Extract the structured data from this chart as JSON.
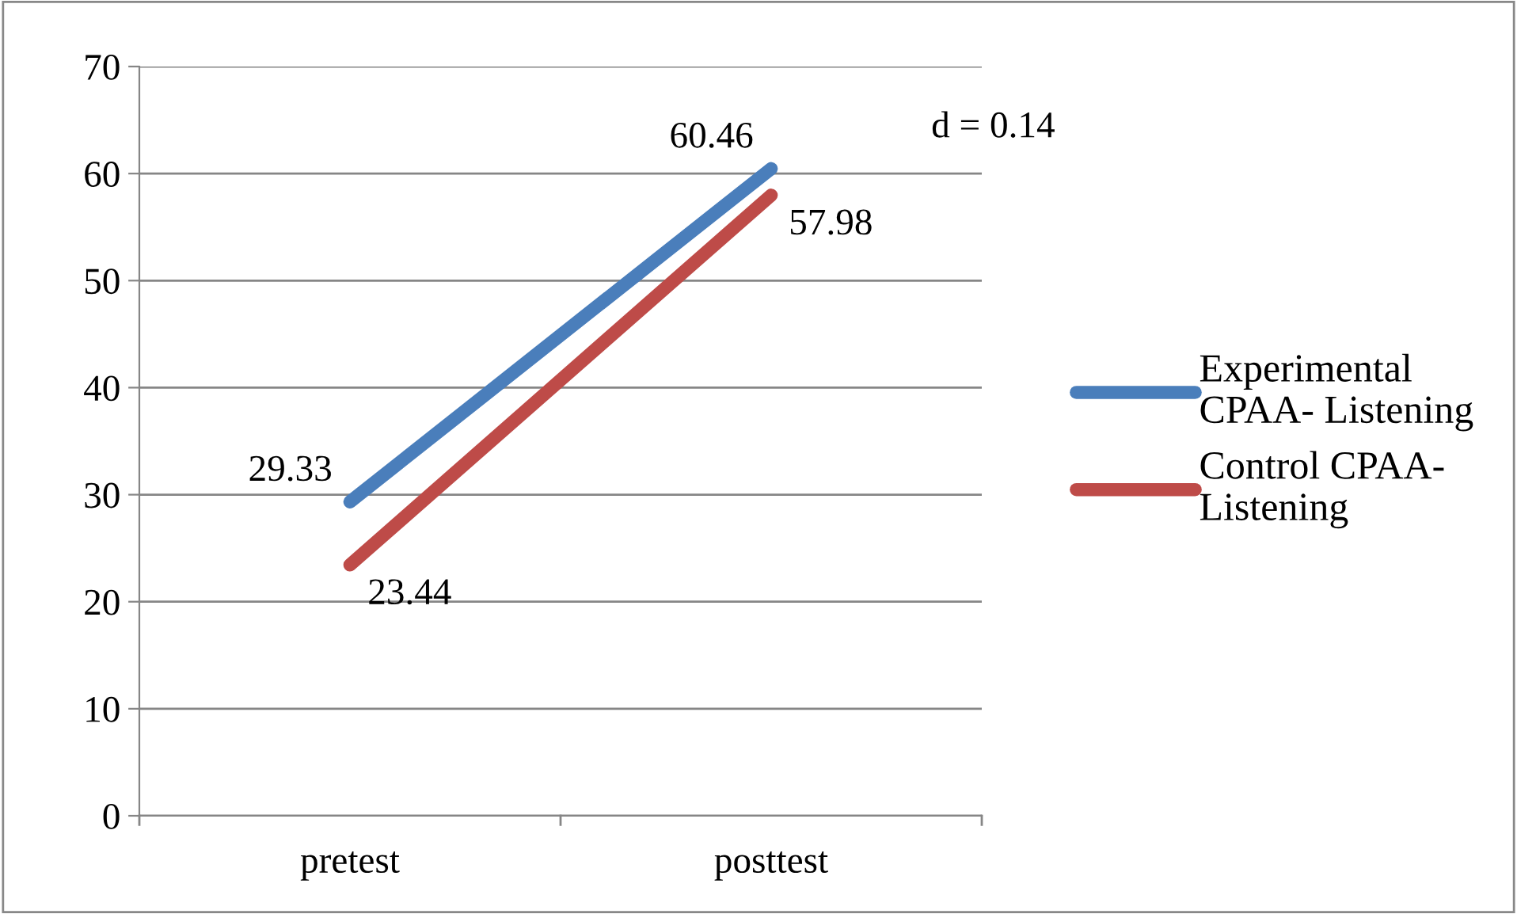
{
  "chart_data": {
    "type": "line",
    "categories": [
      "pretest",
      "posttest"
    ],
    "series": [
      {
        "name": "Experimental CPAA- Listening",
        "color": "#4a7ebb",
        "values": [
          29.33,
          60.46
        ]
      },
      {
        "name": "Control CPAA- Listening",
        "color": "#be4b48",
        "values": [
          23.44,
          57.98
        ]
      }
    ],
    "ylim": [
      0,
      70
    ],
    "yticks": [
      0,
      10,
      20,
      30,
      40,
      50,
      60,
      70
    ],
    "grid": "y",
    "legend": "right",
    "marker": "none",
    "line_style": "solid",
    "data_labels": true,
    "annotations": [
      "d = 0.14"
    ]
  }
}
